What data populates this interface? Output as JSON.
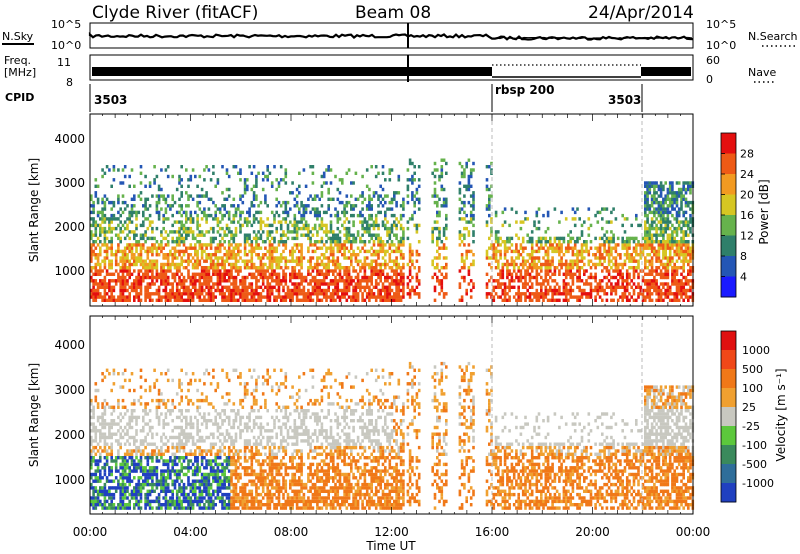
{
  "header": {
    "station": "Clyde River (fitACF)",
    "beam": "Beam 08",
    "date": "24/Apr/2014"
  },
  "top_panels": {
    "nsky_label": "N.Sky",
    "nsky_ticks": [
      "10^5",
      "10^0"
    ],
    "nsearch_ticks": [
      "10^5",
      "10^0"
    ],
    "nsearch_label": "N.Search",
    "freq_label": "Freq.",
    "freq_unit": "[MHz]",
    "freq_ticks": [
      "11",
      "8"
    ],
    "nave_ticks": [
      "60",
      "0"
    ],
    "nave_label": "Nave",
    "cpid_label": "CPID",
    "cpid_segments": [
      {
        "label": "3503",
        "start_h": 0,
        "end_h": 16
      },
      {
        "label": "rbsp 200",
        "start_h": 16,
        "end_h": 22
      },
      {
        "label": "3503",
        "start_h": 22,
        "end_h": 24
      }
    ]
  },
  "chart_data": [
    {
      "type": "heatmap",
      "quantity": "power",
      "ylabel": "Slant Range [km]",
      "xlabel": "",
      "ylim": [
        180,
        4600
      ],
      "xlim": [
        0,
        24
      ],
      "yticks": [
        "1000",
        "2000",
        "3000",
        "4000"
      ],
      "colorbar": {
        "label": "Power [dB]",
        "ticks": [
          "4",
          "8",
          "12",
          "16",
          "20",
          "24",
          "28"
        ],
        "colors": [
          "#1a1aff",
          "#2456b5",
          "#2f7f6a",
          "#66b24c",
          "#d6c623",
          "#f29a21",
          "#ee5a16",
          "#e40f0f"
        ]
      }
    },
    {
      "type": "heatmap",
      "quantity": "velocity",
      "ylabel": "Slant Range [km]",
      "xlabel": "Time UT",
      "ylim": [
        180,
        4600
      ],
      "xlim": [
        0,
        24
      ],
      "yticks": [
        "1000",
        "2000",
        "3000",
        "4000"
      ],
      "xticks": [
        "00:00",
        "04:00",
        "08:00",
        "12:00",
        "16:00",
        "20:00",
        "00:00"
      ],
      "colorbar": {
        "label": "Velocity [m s⁻¹]",
        "ticks": [
          "1000",
          "500",
          "100",
          "25",
          "-25",
          "-100",
          "-500",
          "-1000"
        ],
        "colors": [
          "#2040c0",
          "#2f6e9a",
          "#3a8a5c",
          "#5cc83c",
          "#c8c8c0",
          "#f0a030",
          "#f07818",
          "#f04818",
          "#e01010"
        ]
      }
    }
  ]
}
